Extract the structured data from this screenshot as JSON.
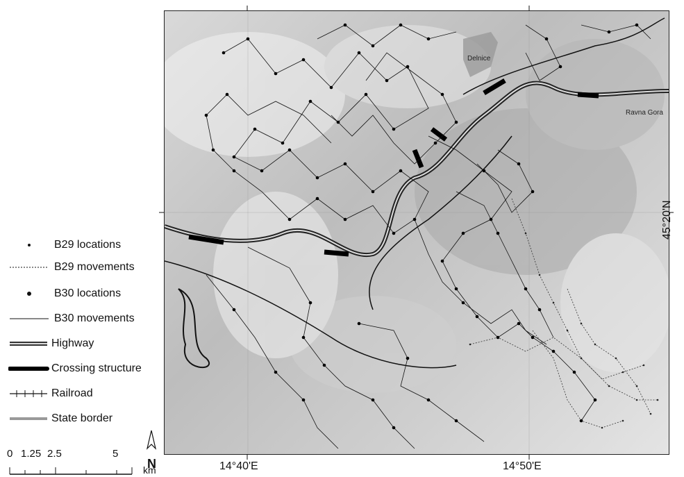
{
  "map": {
    "places": [
      "Delnice",
      "Ravna Gora"
    ],
    "lon_ticks": [
      "14°40'E",
      "14°50'E"
    ],
    "lat_ticks": [
      "45°20'N"
    ]
  },
  "legend": {
    "items": [
      {
        "label": "B29 locations",
        "symbol": "small-dot"
      },
      {
        "label": "B29 movements",
        "symbol": "dotted-line"
      },
      {
        "label": "B30 locations",
        "symbol": "large-dot"
      },
      {
        "label": "B30 movements",
        "symbol": "thin-line"
      },
      {
        "label": "Highway",
        "symbol": "double-line"
      },
      {
        "label": "Crossing structure",
        "symbol": "thick-line"
      },
      {
        "label": "Railroad",
        "symbol": "hatched-line"
      },
      {
        "label": "State border",
        "symbol": "gray-line"
      }
    ]
  },
  "scale_bar": {
    "labels": [
      "0",
      "1.25",
      "2.5",
      "5"
    ],
    "unit": "km"
  },
  "colors": {
    "relief_light": "#e4e4e4",
    "relief_dark": "#9a9a9a",
    "lines": "#111111"
  }
}
